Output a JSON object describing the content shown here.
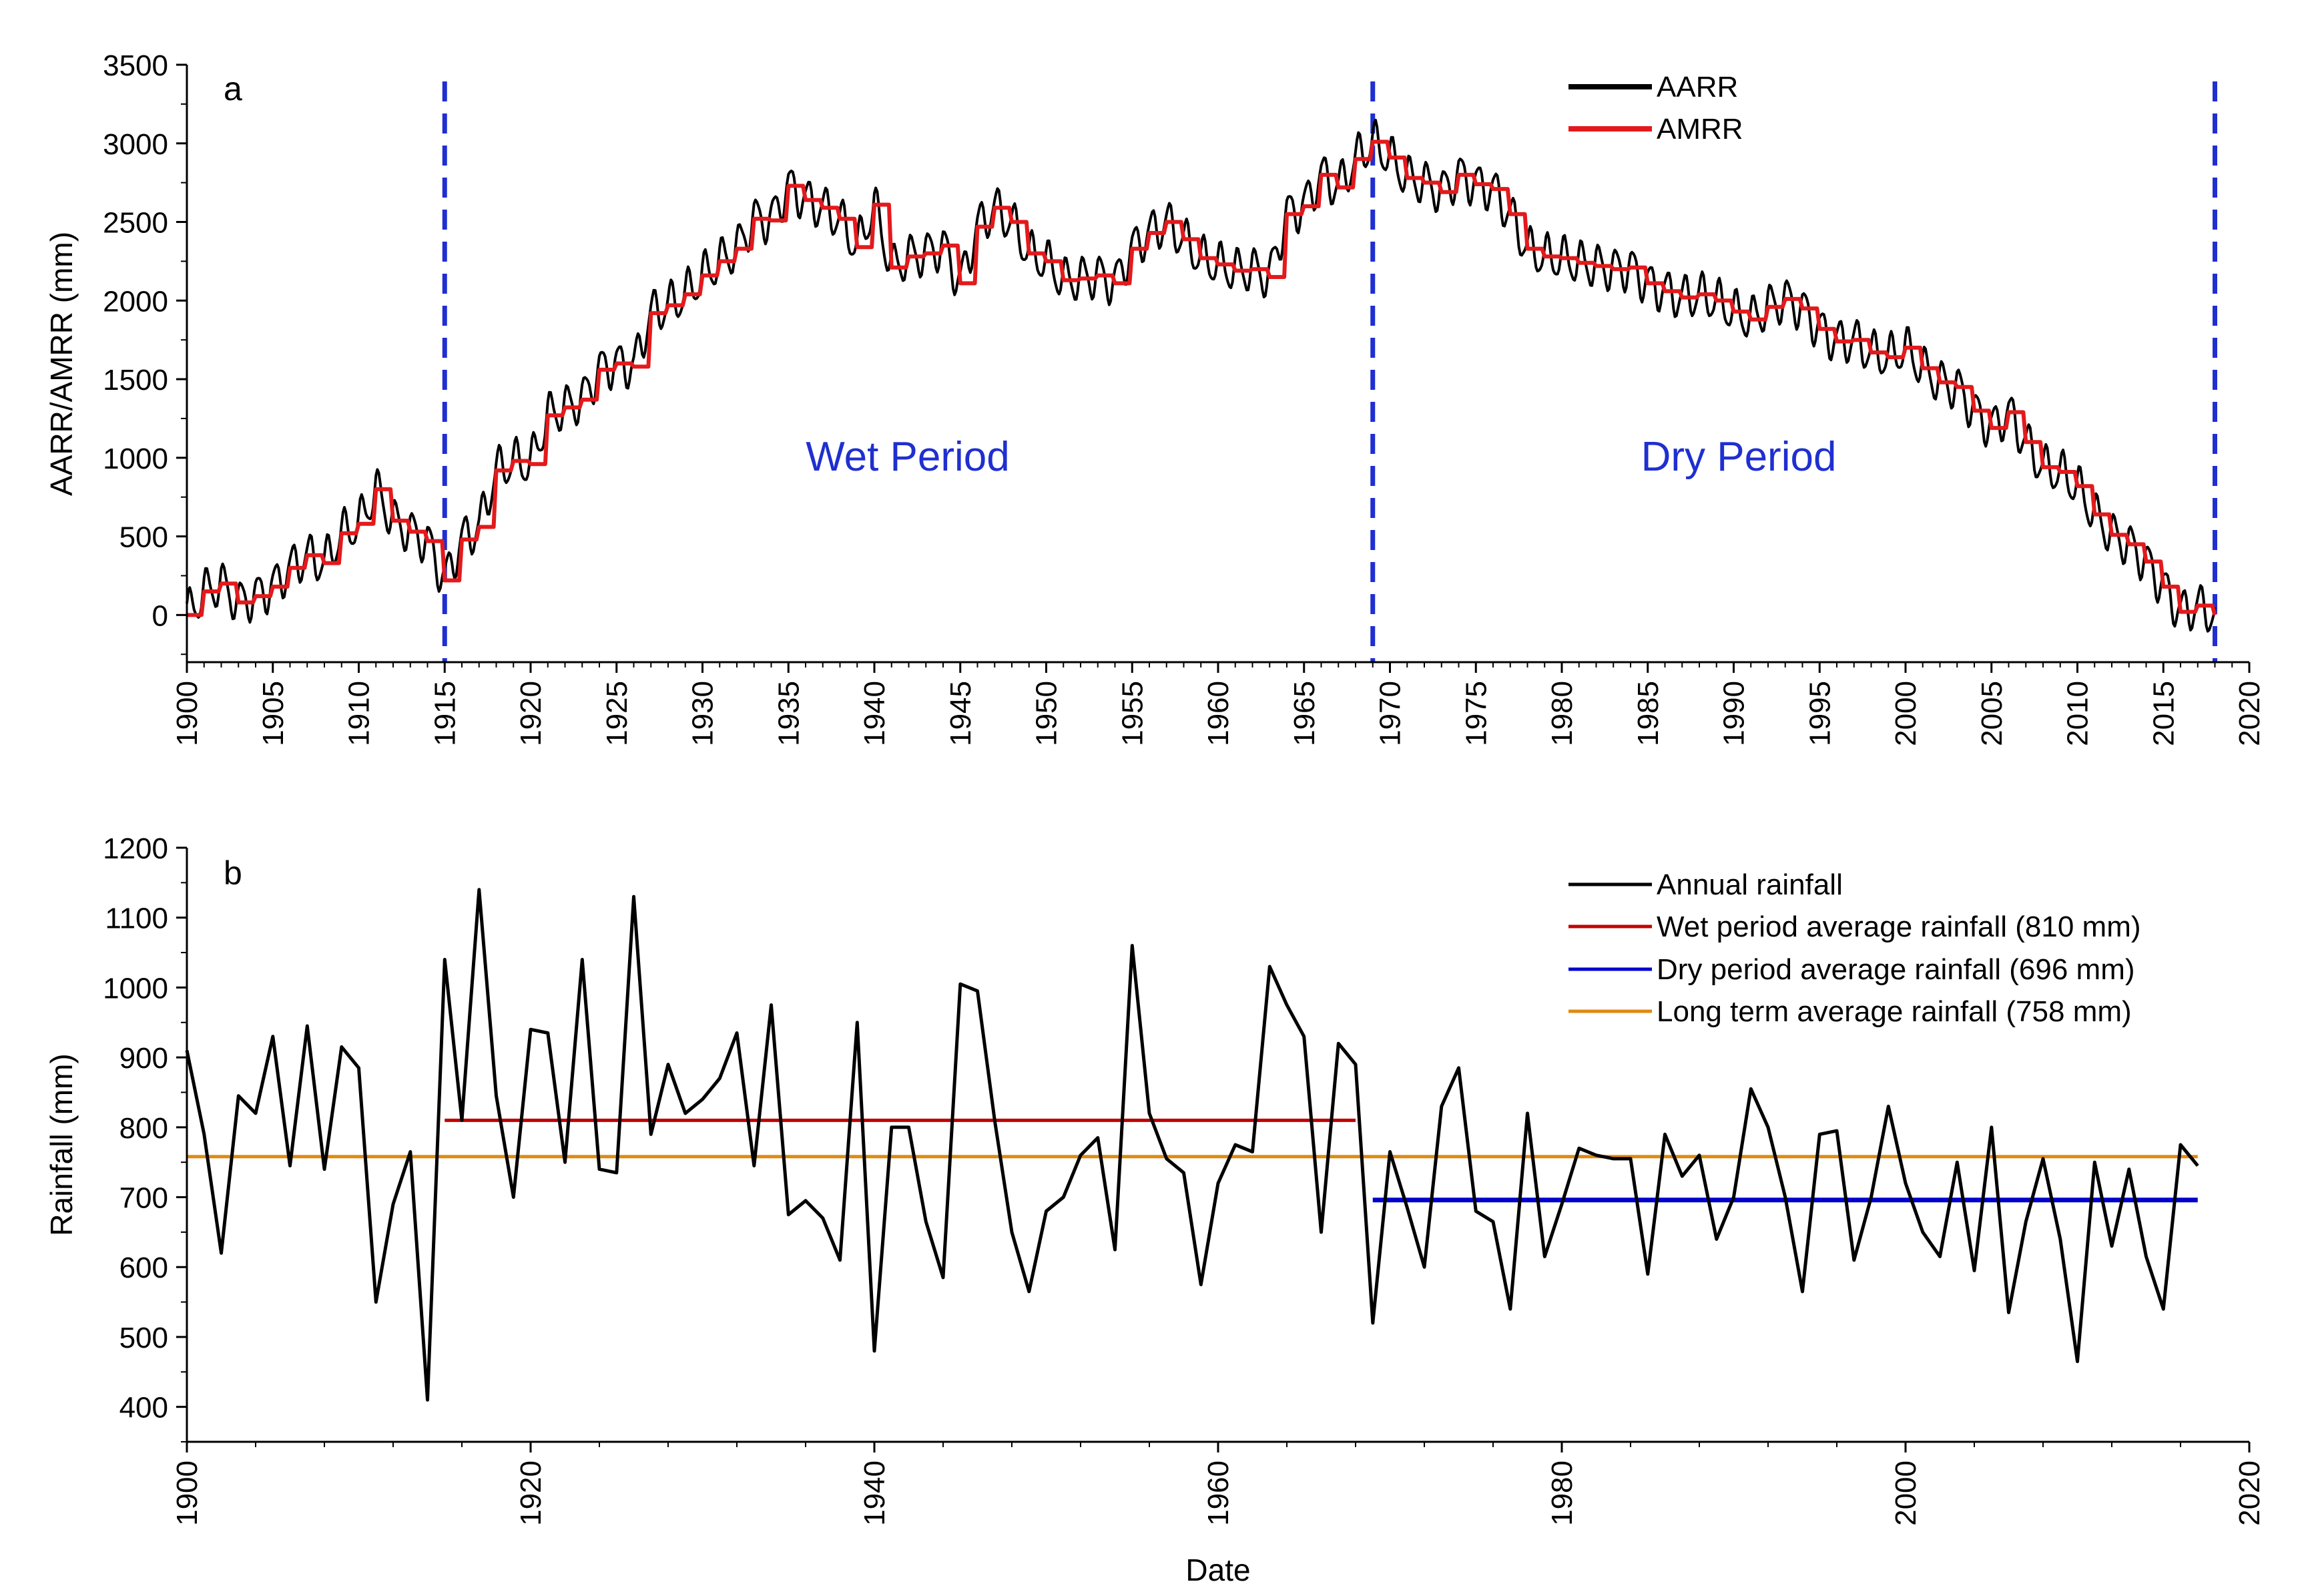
{
  "chart_data": [
    {
      "panel": "a",
      "type": "line",
      "panel_label": "a",
      "ylabel": "AARR/AMRR (mm)",
      "xlabel": "",
      "xlim": [
        1900,
        2020
      ],
      "ylim": [
        -300,
        3500
      ],
      "xticks": [
        1900,
        1905,
        1910,
        1915,
        1920,
        1925,
        1930,
        1935,
        1940,
        1945,
        1950,
        1955,
        1960,
        1965,
        1970,
        1975,
        1980,
        1985,
        1990,
        1995,
        2000,
        2005,
        2010,
        2015,
        2020
      ],
      "xtick_labels": [
        "1900",
        "1905",
        "1910",
        "1915",
        "1920",
        "1925",
        "1930",
        "1935",
        "1940",
        "1945",
        "1950",
        "1955",
        "1960",
        "1965",
        "1970",
        "1975",
        "1980",
        "1985",
        "1990",
        "1995",
        "2000",
        "2005",
        "2010",
        "2015",
        "2020"
      ],
      "yticks": [
        0,
        500,
        1000,
        1500,
        2000,
        2500,
        3000,
        3500
      ],
      "ytick_labels": [
        "0",
        "500",
        "1000",
        "1500",
        "2000",
        "2500",
        "3000",
        "3500"
      ],
      "legend": [
        "AARR",
        "AMRR"
      ],
      "annotations": [
        {
          "text": "Wet Period",
          "x": 1942,
          "y": 980
        },
        {
          "text": "Dry Period",
          "x": 1991,
          "y": 980
        }
      ],
      "dividers": [
        1915,
        1969,
        2018
      ],
      "series": [
        {
          "name": "AMRR",
          "color": "#e31a1c",
          "x": [
            1900,
            1901,
            1902,
            1903,
            1904,
            1905,
            1906,
            1907,
            1908,
            1909,
            1910,
            1911,
            1912,
            1913,
            1914,
            1915,
            1916,
            1917,
            1918,
            1919,
            1920,
            1921,
            1922,
            1923,
            1924,
            1925,
            1926,
            1927,
            1928,
            1929,
            1930,
            1931,
            1932,
            1933,
            1934,
            1935,
            1936,
            1937,
            1938,
            1939,
            1940,
            1941,
            1942,
            1943,
            1944,
            1945,
            1946,
            1947,
            1948,
            1949,
            1950,
            1951,
            1952,
            1953,
            1954,
            1955,
            1956,
            1957,
            1958,
            1959,
            1960,
            1961,
            1962,
            1963,
            1964,
            1965,
            1966,
            1967,
            1968,
            1969,
            1970,
            1971,
            1972,
            1973,
            1974,
            1975,
            1976,
            1977,
            1978,
            1979,
            1980,
            1981,
            1982,
            1983,
            1984,
            1985,
            1986,
            1987,
            1988,
            1989,
            1990,
            1991,
            1992,
            1993,
            1994,
            1995,
            1996,
            1997,
            1998,
            1999,
            2000,
            2001,
            2002,
            2003,
            2004,
            2005,
            2006,
            2007,
            2008,
            2009,
            2010,
            2011,
            2012,
            2013,
            2014,
            2015,
            2016,
            2017,
            2018
          ],
          "values": [
            0,
            150,
            200,
            80,
            120,
            180,
            300,
            380,
            330,
            520,
            580,
            800,
            600,
            530,
            470,
            220,
            480,
            560,
            920,
            980,
            960,
            1270,
            1320,
            1370,
            1560,
            1600,
            1580,
            1920,
            1970,
            2040,
            2160,
            2250,
            2330,
            2520,
            2510,
            2730,
            2640,
            2590,
            2520,
            2340,
            2610,
            2210,
            2280,
            2300,
            2350,
            2110,
            2470,
            2590,
            2500,
            2300,
            2250,
            2130,
            2140,
            2160,
            2110,
            2330,
            2430,
            2500,
            2390,
            2270,
            2230,
            2190,
            2200,
            2150,
            2550,
            2600,
            2800,
            2720,
            2900,
            3010,
            2910,
            2780,
            2750,
            2690,
            2800,
            2740,
            2710,
            2550,
            2330,
            2280,
            2270,
            2240,
            2220,
            2200,
            2210,
            2110,
            2060,
            2020,
            2040,
            2000,
            1930,
            1880,
            1960,
            2010,
            1950,
            1820,
            1740,
            1750,
            1670,
            1640,
            1700,
            1570,
            1480,
            1450,
            1300,
            1190,
            1290,
            1100,
            940,
            910,
            820,
            640,
            510,
            450,
            340,
            180,
            20,
            60,
            0
          ]
        },
        {
          "name": "AARR",
          "color": "#000000",
          "amplitude_mm": 130,
          "note": "monthly-resolution series tracking AMRR with a seasonal oscillation of roughly ±130 mm"
        }
      ]
    },
    {
      "panel": "b",
      "type": "line",
      "panel_label": "b",
      "ylabel": "Rainfall (mm)",
      "xlabel": "Date",
      "xlim": [
        1900,
        2020
      ],
      "ylim": [
        350,
        1200
      ],
      "xticks": [
        1900,
        1920,
        1940,
        1960,
        1980,
        2000,
        2020
      ],
      "xtick_labels": [
        "1900",
        "1920",
        "1940",
        "1960",
        "1980",
        "2000",
        "2020"
      ],
      "yticks": [
        400,
        500,
        600,
        700,
        800,
        900,
        1000,
        1100,
        1200
      ],
      "ytick_labels": [
        "400",
        "500",
        "600",
        "700",
        "800",
        "900",
        "1000",
        "1100",
        "1200"
      ],
      "legend": [
        "Annual rainfall",
        "Wet period average rainfall (810 mm)",
        "Dry period average rainfall (696 mm)",
        "Long term average rainfall (758 mm)"
      ],
      "series": [
        {
          "name": "Annual rainfall",
          "color": "#000000",
          "x": [
            1900,
            1901,
            1902,
            1903,
            1904,
            1905,
            1906,
            1907,
            1908,
            1909,
            1910,
            1911,
            1912,
            1913,
            1914,
            1915,
            1916,
            1917,
            1918,
            1919,
            1920,
            1921,
            1922,
            1923,
            1924,
            1925,
            1926,
            1927,
            1928,
            1929,
            1930,
            1931,
            1932,
            1933,
            1934,
            1935,
            1936,
            1937,
            1938,
            1939,
            1940,
            1941,
            1942,
            1943,
            1944,
            1945,
            1946,
            1947,
            1948,
            1949,
            1950,
            1951,
            1952,
            1953,
            1954,
            1955,
            1956,
            1957,
            1958,
            1959,
            1960,
            1961,
            1962,
            1963,
            1964,
            1965,
            1966,
            1967,
            1968,
            1969,
            1970,
            1971,
            1972,
            1973,
            1974,
            1975,
            1976,
            1977,
            1978,
            1979,
            1980,
            1981,
            1982,
            1983,
            1984,
            1985,
            1986,
            1987,
            1988,
            1989,
            1990,
            1991,
            1992,
            1993,
            1994,
            1995,
            1996,
            1997,
            1998,
            1999,
            2000,
            2001,
            2002,
            2003,
            2004,
            2005,
            2006,
            2007,
            2008,
            2009,
            2010,
            2011,
            2012,
            2013,
            2014,
            2015,
            2016,
            2017
          ],
          "values": [
            910,
            790,
            620,
            845,
            820,
            930,
            745,
            945,
            740,
            915,
            885,
            550,
            690,
            765,
            410,
            1040,
            810,
            1140,
            845,
            700,
            940,
            935,
            750,
            1040,
            740,
            735,
            1130,
            790,
            890,
            820,
            840,
            870,
            935,
            745,
            975,
            675,
            695,
            670,
            610,
            950,
            480,
            800,
            800,
            665,
            585,
            1005,
            995,
            810,
            650,
            565,
            680,
            700,
            760,
            785,
            625,
            1060,
            820,
            755,
            735,
            575,
            720,
            775,
            765,
            1030,
            975,
            930,
            650,
            920,
            890,
            520,
            765,
            685,
            600,
            830,
            885,
            680,
            665,
            540,
            820,
            615,
            690,
            770,
            760,
            755,
            755,
            590,
            790,
            730,
            760,
            640,
            700,
            855,
            800,
            700,
            565,
            790,
            795,
            610,
            700,
            830,
            720,
            650,
            615,
            750,
            595,
            800,
            535,
            665,
            755,
            640,
            465,
            750,
            630,
            740,
            615,
            540,
            775,
            745
          ]
        },
        {
          "name": "Wet period average rainfall (810 mm)",
          "color": "#c00000",
          "x": [
            1915,
            1968
          ],
          "values": [
            810,
            810
          ]
        },
        {
          "name": "Dry period average rainfall (696 mm)",
          "color": "#0000cc",
          "x": [
            1969,
            2017
          ],
          "values": [
            696,
            696
          ]
        },
        {
          "name": "Long term average rainfall (758 mm)",
          "color": "#e08a12",
          "x": [
            1900,
            2017
          ],
          "values": [
            758,
            758
          ]
        }
      ]
    }
  ]
}
